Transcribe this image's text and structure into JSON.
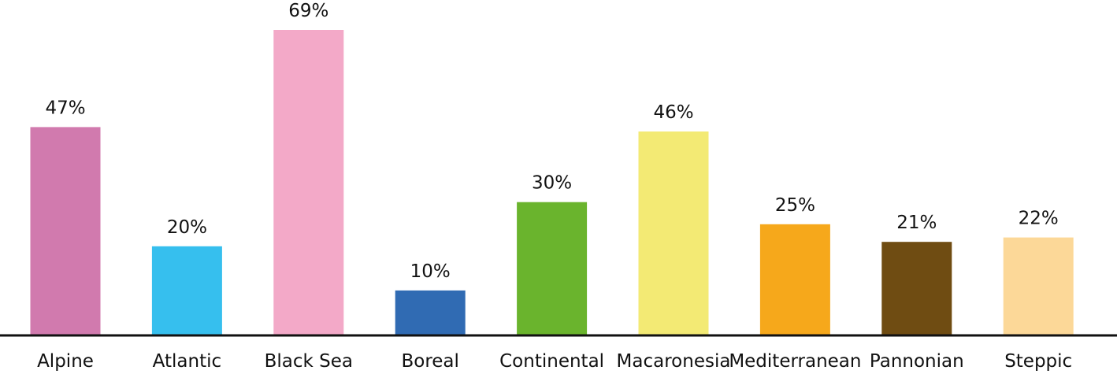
{
  "chart_data": {
    "type": "bar",
    "title": "",
    "xlabel": "",
    "ylabel": "",
    "ylim": [
      0,
      69
    ],
    "grid": false,
    "legend": "none",
    "categories": [
      "Alpine",
      "Atlantic",
      "Black Sea",
      "Boreal",
      "Continental",
      "Macaronesia",
      "Mediterranean",
      "Pannonian",
      "Steppic"
    ],
    "values": [
      47,
      20,
      69,
      10,
      30,
      46,
      25,
      21,
      22
    ],
    "value_labels": [
      "47%",
      "20%",
      "69%",
      "10%",
      "30%",
      "46%",
      "25%",
      "21%",
      "22%"
    ],
    "colors": [
      "#d17aae",
      "#36bfee",
      "#f3a9c8",
      "#306bb3",
      "#6ab42d",
      "#f3ea74",
      "#f6a81b",
      "#6f4c12",
      "#fcd898"
    ]
  }
}
